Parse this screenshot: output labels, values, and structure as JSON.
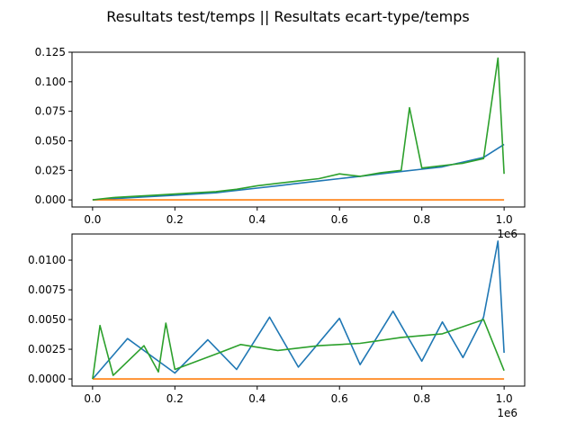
{
  "figure": {
    "suptitle": "Resultats test/temps || Resultats ecart-type/temps",
    "background": "#ffffff"
  },
  "chart_data": [
    {
      "type": "line",
      "title": "",
      "xlabel": "",
      "ylabel": "",
      "xlim": [
        -50000,
        1050000
      ],
      "ylim": [
        -0.006,
        0.125
      ],
      "x_ticks": [
        0,
        200000,
        400000,
        600000,
        800000,
        1000000
      ],
      "x_tick_labels": [
        "0.0",
        "0.2",
        "0.4",
        "0.6",
        "0.8",
        "1.0"
      ],
      "x_offset_label": "1e6",
      "y_ticks": [
        0.0,
        0.025,
        0.05,
        0.075,
        0.1,
        0.125
      ],
      "y_tick_labels": [
        "0.000",
        "0.025",
        "0.050",
        "0.075",
        "0.100",
        "0.125"
      ],
      "grid": false,
      "series": [
        {
          "color": "#1f77b4",
          "x": [
            0,
            50000,
            100000,
            150000,
            200000,
            250000,
            300000,
            350000,
            400000,
            450000,
            500000,
            550000,
            600000,
            650000,
            700000,
            750000,
            800000,
            850000,
            900000,
            950000,
            1000000
          ],
          "values": [
            0.0,
            0.001,
            0.002,
            0.003,
            0.004,
            0.005,
            0.006,
            0.008,
            0.01,
            0.012,
            0.014,
            0.016,
            0.018,
            0.02,
            0.022,
            0.024,
            0.026,
            0.028,
            0.032,
            0.036,
            0.047
          ]
        },
        {
          "color": "#ff7f0e",
          "x": [
            0,
            1000000
          ],
          "values": [
            0.0,
            0.0
          ]
        },
        {
          "color": "#2ca02c",
          "x": [
            0,
            50000,
            100000,
            150000,
            200000,
            250000,
            300000,
            350000,
            400000,
            450000,
            500000,
            550000,
            600000,
            650000,
            700000,
            750000,
            770000,
            800000,
            850000,
            900000,
            950000,
            985000,
            1000000
          ],
          "values": [
            0.0,
            0.002,
            0.003,
            0.004,
            0.005,
            0.006,
            0.007,
            0.009,
            0.012,
            0.014,
            0.016,
            0.018,
            0.022,
            0.02,
            0.023,
            0.025,
            0.078,
            0.027,
            0.029,
            0.031,
            0.035,
            0.12,
            0.022
          ]
        }
      ]
    },
    {
      "type": "line",
      "title": "",
      "xlabel": "",
      "ylabel": "",
      "xlim": [
        -50000,
        1050000
      ],
      "ylim": [
        -0.0006,
        0.0122
      ],
      "x_ticks": [
        0,
        200000,
        400000,
        600000,
        800000,
        1000000
      ],
      "x_tick_labels": [
        "0.0",
        "0.2",
        "0.4",
        "0.6",
        "0.8",
        "1.0"
      ],
      "x_offset_label": "1e6",
      "y_ticks": [
        0.0,
        0.0025,
        0.005,
        0.0075,
        0.01
      ],
      "y_tick_labels": [
        "0.0000",
        "0.0025",
        "0.0050",
        "0.0075",
        "0.0100"
      ],
      "grid": false,
      "series": [
        {
          "color": "#1f77b4",
          "x": [
            0,
            85000,
            200000,
            280000,
            350000,
            430000,
            500000,
            600000,
            650000,
            730000,
            800000,
            850000,
            900000,
            950000,
            985000,
            1000000
          ],
          "values": [
            0.0,
            0.0034,
            0.0005,
            0.0033,
            0.0008,
            0.0052,
            0.001,
            0.0051,
            0.0012,
            0.0057,
            0.0015,
            0.0048,
            0.0018,
            0.0052,
            0.0116,
            0.0022
          ]
        },
        {
          "color": "#ff7f0e",
          "x": [
            0,
            1000000
          ],
          "values": [
            0.0,
            0.0
          ]
        },
        {
          "color": "#2ca02c",
          "x": [
            0,
            18000,
            50000,
            125000,
            160000,
            178000,
            200000,
            300000,
            360000,
            450000,
            550000,
            650000,
            750000,
            850000,
            950000,
            1000000
          ],
          "values": [
            0.0,
            0.0045,
            0.0003,
            0.0028,
            0.0006,
            0.0047,
            0.0008,
            0.0021,
            0.0029,
            0.0024,
            0.0028,
            0.003,
            0.0035,
            0.0038,
            0.005,
            0.0007
          ]
        }
      ]
    }
  ]
}
